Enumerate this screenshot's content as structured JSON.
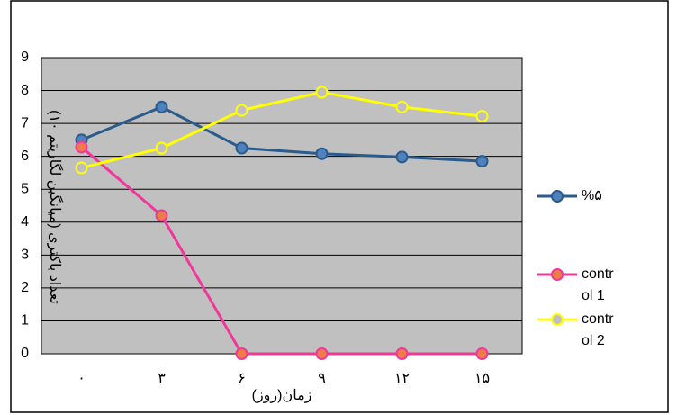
{
  "chart_data": {
    "type": "line",
    "categories": [
      "۰",
      "۳",
      "۶",
      "۹",
      "۱۲",
      "۱۵"
    ],
    "x_label": "زمان(روز)",
    "y_label": "تعداد باکتری (میانگین لگاریتم ۱۰)",
    "ylim": [
      0,
      9
    ],
    "yticks": [
      0,
      1,
      2,
      3,
      4,
      5,
      6,
      7,
      8,
      9
    ],
    "grid": true,
    "legend": "right",
    "series": [
      {
        "name": "%۵",
        "color": "#2a5b8c",
        "marker_color": "#4f81bd",
        "values": [
          6.5,
          7.5,
          6.25,
          6.08,
          5.98,
          5.85
        ]
      },
      {
        "name": "control 1",
        "color": "#f0389a",
        "marker_color": "#f07a48",
        "values": [
          6.28,
          4.2,
          0,
          0,
          0,
          0
        ]
      },
      {
        "name": "control 2",
        "color": "#ffff00",
        "marker_color": "#bfbfbf",
        "values": [
          5.65,
          6.25,
          7.4,
          7.95,
          7.5,
          7.22
        ]
      }
    ]
  }
}
